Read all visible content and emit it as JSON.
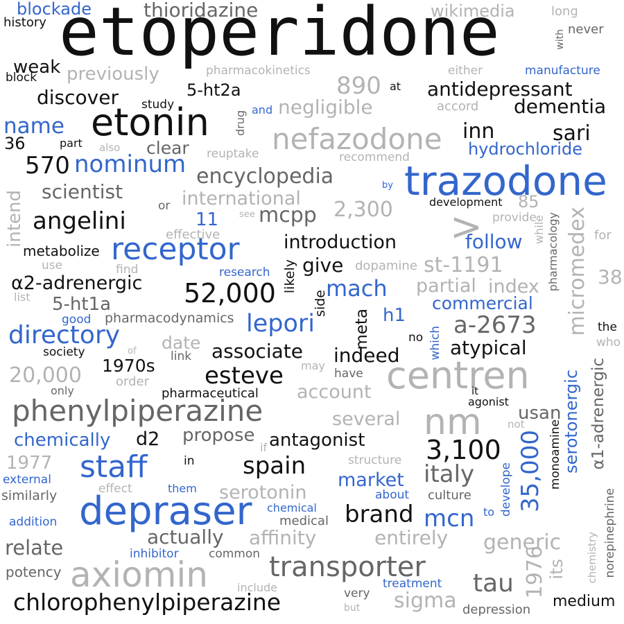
{
  "palette": {
    "black": "#111111",
    "blue": "#3366cc",
    "gray": "#666666",
    "light": "#b3b3b3"
  },
  "words": [
    {
      "text": "etoperidone",
      "color": "black"
    },
    {
      "text": "trazodone",
      "color": "blue"
    },
    {
      "text": "depraser",
      "color": "blue"
    },
    {
      "text": "centren",
      "color": "light"
    },
    {
      "text": "axiomin",
      "color": "light"
    },
    {
      "text": "etonin",
      "color": "black"
    },
    {
      "text": "phenylpiperazine",
      "color": "gray"
    },
    {
      "text": "nefazodone",
      "color": "light"
    },
    {
      "text": "receptor",
      "color": "blue"
    },
    {
      "text": "nm",
      "color": "light"
    },
    {
      "text": "transporter",
      "color": "gray"
    },
    {
      "text": "chlorophenylpiperazine",
      "color": "black"
    },
    {
      "text": "staff",
      "color": "blue"
    },
    {
      "text": "directory",
      "color": "blue"
    },
    {
      "text": "52,000",
      "color": "black"
    },
    {
      "text": "3,100",
      "color": "black"
    },
    {
      "text": "35,000",
      "color": "blue"
    },
    {
      "text": "a-2673",
      "color": "gray"
    },
    {
      "text": "micromedex",
      "color": "light"
    },
    {
      "text": "st-1191",
      "color": "light"
    },
    {
      "text": "lepori",
      "color": "blue"
    },
    {
      "text": "spain",
      "color": "black"
    },
    {
      "text": "italy",
      "color": "gray"
    },
    {
      "text": "brand",
      "color": "black"
    },
    {
      "text": "tau",
      "color": "gray"
    },
    {
      "text": "mcn",
      "color": "blue"
    },
    {
      "text": "esteve",
      "color": "black"
    },
    {
      "text": "angelini",
      "color": "black"
    },
    {
      "text": "nominum",
      "color": "blue"
    },
    {
      "text": "570",
      "color": "black"
    },
    {
      "text": "encyclopedia",
      "color": "gray"
    },
    {
      "text": "890",
      "color": "light"
    },
    {
      "text": "2,300",
      "color": "light"
    },
    {
      "text": "20,000",
      "color": "light"
    },
    {
      "text": "antidepressant",
      "color": "black"
    },
    {
      "text": "dementia",
      "color": "black"
    },
    {
      "text": "negligible",
      "color": "light"
    },
    {
      "text": "sari",
      "color": "black"
    },
    {
      "text": "inn",
      "color": "black"
    },
    {
      "text": "hydrochloride",
      "color": "blue"
    },
    {
      "text": "name",
      "color": "blue"
    },
    {
      "text": "discover",
      "color": "black"
    },
    {
      "text": "weak",
      "color": "black"
    },
    {
      "text": "previously",
      "color": "light"
    },
    {
      "text": "5-ht2a",
      "color": "black"
    },
    {
      "text": "blockade",
      "color": "blue"
    },
    {
      "text": "thioridazine",
      "color": "gray"
    },
    {
      "text": "wikimedia",
      "color": "light"
    },
    {
      "text": "history",
      "color": "black"
    },
    {
      "text": "block",
      "color": "black"
    },
    {
      "text": "pharmacokinetics",
      "color": "light"
    },
    {
      "text": "either",
      "color": "light"
    },
    {
      "text": "manufacture",
      "color": "blue"
    },
    {
      "text": "at",
      "color": "black"
    },
    {
      "text": "accord",
      "color": "light"
    },
    {
      "text": "study",
      "color": "black"
    },
    {
      "text": "and",
      "color": "blue"
    },
    {
      "text": "36",
      "color": "black"
    },
    {
      "text": "part",
      "color": "black"
    },
    {
      "text": "also",
      "color": "light"
    },
    {
      "text": "clear",
      "color": "gray"
    },
    {
      "text": "reuptake",
      "color": "light"
    },
    {
      "text": "recommend",
      "color": "light"
    },
    {
      "text": "scientist",
      "color": "gray"
    },
    {
      "text": "international",
      "color": "light"
    },
    {
      "text": "mcpp",
      "color": "gray"
    },
    {
      "text": "or",
      "color": "gray"
    },
    {
      "text": "see",
      "color": "light"
    },
    {
      "text": "development",
      "color": "black"
    },
    {
      "text": "provide",
      "color": "light"
    },
    {
      "text": "effective",
      "color": "light"
    },
    {
      "text": "follow",
      "color": "blue"
    },
    {
      "text": "metabolize",
      "color": "black"
    },
    {
      "text": "introduction",
      "color": "black"
    },
    {
      "text": "give",
      "color": "black"
    },
    {
      "text": "dopamine",
      "color": "light"
    },
    {
      "text": "use",
      "color": "light"
    },
    {
      "text": "find",
      "color": "light"
    },
    {
      "text": "research",
      "color": "blue"
    },
    {
      "text": "α2-adrenergic",
      "color": "black"
    },
    {
      "text": "mach",
      "color": "blue"
    },
    {
      "text": "partial",
      "color": "light"
    },
    {
      "text": "index",
      "color": "light"
    },
    {
      "text": "list",
      "color": "light"
    },
    {
      "text": "5-ht1a",
      "color": "gray"
    },
    {
      "text": "commercial",
      "color": "blue"
    },
    {
      "text": "good",
      "color": "blue"
    },
    {
      "text": "pharmacodynamics",
      "color": "gray"
    },
    {
      "text": "h1",
      "color": "blue"
    },
    {
      "text": "society",
      "color": "black"
    },
    {
      "text": "of",
      "color": "light"
    },
    {
      "text": "link",
      "color": "gray"
    },
    {
      "text": "date",
      "color": "light"
    },
    {
      "text": "associate",
      "color": "black"
    },
    {
      "text": "indeed",
      "color": "black"
    },
    {
      "text": "no",
      "color": "black"
    },
    {
      "text": "atypical",
      "color": "black"
    },
    {
      "text": "1970s",
      "color": "black"
    },
    {
      "text": "order",
      "color": "light"
    },
    {
      "text": "may",
      "color": "light"
    },
    {
      "text": "have",
      "color": "gray"
    },
    {
      "text": "only",
      "color": "gray"
    },
    {
      "text": "pharmaceutical",
      "color": "black"
    },
    {
      "text": "account",
      "color": "light"
    },
    {
      "text": "agonist",
      "color": "black"
    },
    {
      "text": "usan",
      "color": "gray"
    },
    {
      "text": "several",
      "color": "light"
    },
    {
      "text": "not",
      "color": "light"
    },
    {
      "text": "chemically",
      "color": "blue"
    },
    {
      "text": "d2",
      "color": "black"
    },
    {
      "text": "propose",
      "color": "gray"
    },
    {
      "text": "antagonist",
      "color": "black"
    },
    {
      "text": "if",
      "color": "light"
    },
    {
      "text": "1977",
      "color": "light"
    },
    {
      "text": "in",
      "color": "black"
    },
    {
      "text": "structure",
      "color": "light"
    },
    {
      "text": "external",
      "color": "blue"
    },
    {
      "text": "market",
      "color": "blue"
    },
    {
      "text": "similarly",
      "color": "gray"
    },
    {
      "text": "effect",
      "color": "light"
    },
    {
      "text": "them",
      "color": "blue"
    },
    {
      "text": "serotonin",
      "color": "light"
    },
    {
      "text": "about",
      "color": "blue"
    },
    {
      "text": "culture",
      "color": "gray"
    },
    {
      "text": "addition",
      "color": "blue"
    },
    {
      "text": "chemical",
      "color": "blue"
    },
    {
      "text": "medical",
      "color": "gray"
    },
    {
      "text": "to",
      "color": "blue"
    },
    {
      "text": "actually",
      "color": "gray"
    },
    {
      "text": "affinity",
      "color": "light"
    },
    {
      "text": "entirely",
      "color": "light"
    },
    {
      "text": "generic",
      "color": "light"
    },
    {
      "text": "relate",
      "color": "gray"
    },
    {
      "text": "inhibitor",
      "color": "blue"
    },
    {
      "text": "common",
      "color": "gray"
    },
    {
      "text": "potency",
      "color": "gray"
    },
    {
      "text": "include",
      "color": "light"
    },
    {
      "text": "treatment",
      "color": "blue"
    },
    {
      "text": "very",
      "color": "gray"
    },
    {
      "text": "but",
      "color": "light"
    },
    {
      "text": "sigma",
      "color": "light"
    },
    {
      "text": "depression",
      "color": "gray"
    },
    {
      "text": "medium",
      "color": "black"
    },
    {
      "text": "long",
      "color": "light"
    },
    {
      "text": "never",
      "color": "gray"
    },
    {
      "text": "by",
      "color": "blue"
    },
    {
      "text": "85",
      "color": "light"
    },
    {
      "text": "for",
      "color": "light"
    },
    {
      "text": "38",
      "color": "light"
    },
    {
      "text": "the",
      "color": "black"
    },
    {
      "text": "who",
      "color": "light"
    },
    {
      "text": "it",
      "color": "black"
    },
    {
      "text": "11",
      "color": "blue"
    },
    {
      "text": "with",
      "color": "gray"
    },
    {
      "text": "drug",
      "color": "gray"
    },
    {
      "text": "intend",
      "color": "light"
    },
    {
      "text": "likely",
      "color": "black"
    },
    {
      "text": "side",
      "color": "black"
    },
    {
      "text": "meta",
      "color": "black"
    },
    {
      "text": "which",
      "color": "blue"
    },
    {
      "text": "serotonergic",
      "color": "blue"
    },
    {
      "text": "α1-adrenergic",
      "color": "gray"
    },
    {
      "text": "1976",
      "color": "light"
    },
    {
      "text": "its",
      "color": "light"
    },
    {
      "text": "develope",
      "color": "blue"
    },
    {
      "text": "monoamine",
      "color": "black"
    },
    {
      "text": "while",
      "color": "light"
    },
    {
      "text": "pharmacology",
      "color": "gray"
    },
    {
      "text": "chemistry",
      "color": "light"
    },
    {
      "text": "norepinephrine",
      "color": "gray"
    },
    {
      "text": ">",
      "color": "light"
    }
  ]
}
